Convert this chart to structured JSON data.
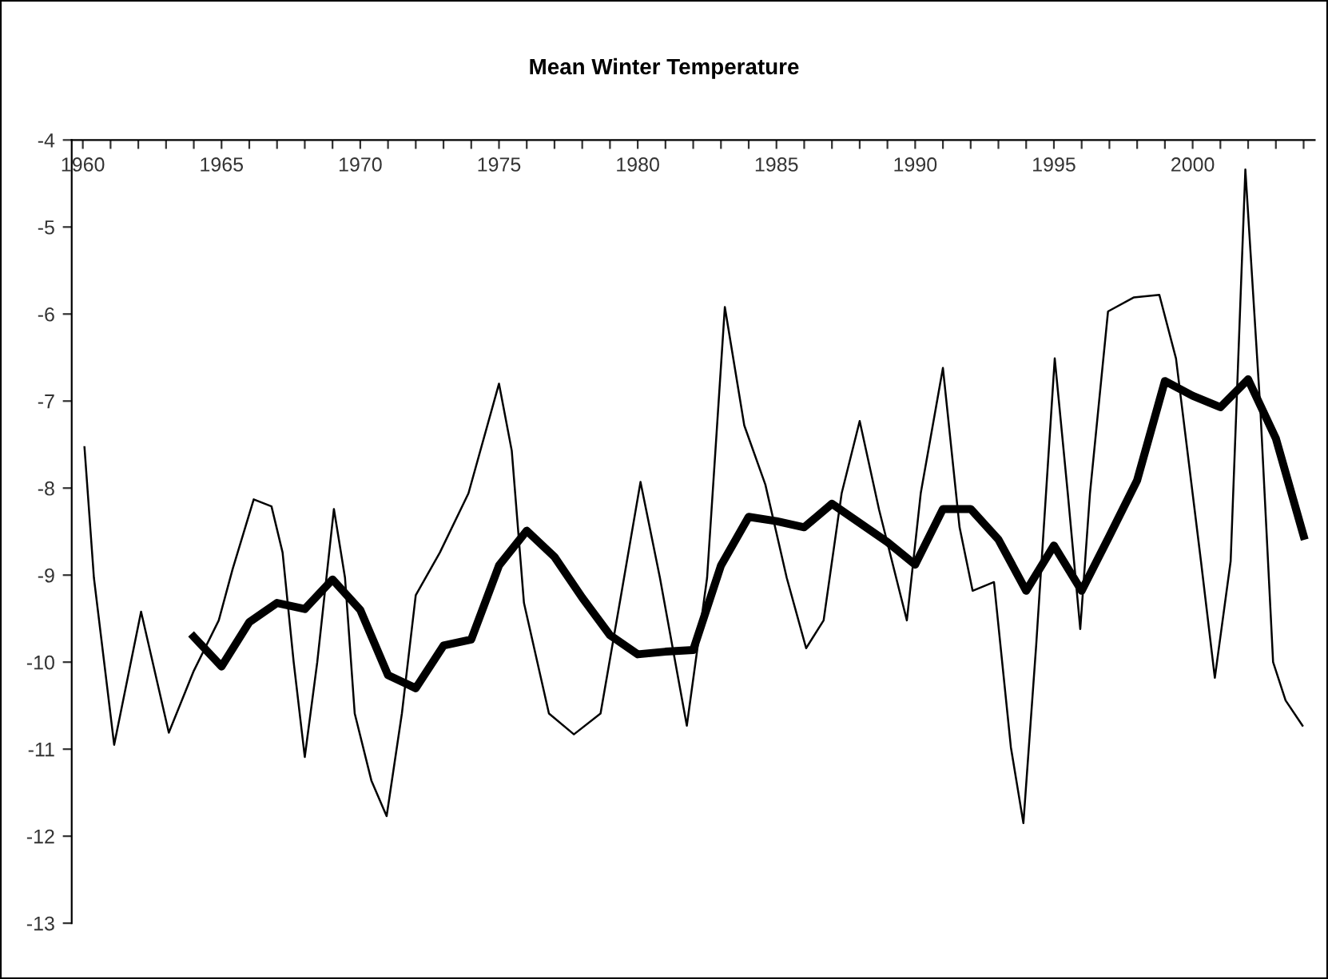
{
  "chart_data": {
    "type": "line",
    "title": "Mean Winter Temperature",
    "xlim": [
      1959.6,
      2004.4
    ],
    "xticks": [
      1960,
      {
        "value": 1961,
        "label": null
      },
      {
        "value": 1962,
        "label": null
      },
      {
        "value": 1963,
        "label": null
      },
      {
        "value": 1964,
        "label": null
      },
      1965,
      {
        "value": 1966,
        "label": null
      },
      {
        "value": 1967,
        "label": null
      },
      {
        "value": 1968,
        "label": null
      },
      {
        "value": 1969,
        "label": null
      },
      1970,
      {
        "value": 1971,
        "label": null
      },
      {
        "value": 1972,
        "label": null
      },
      {
        "value": 1973,
        "label": null
      },
      {
        "value": 1974,
        "label": null
      },
      1975,
      {
        "value": 1976,
        "label": null
      },
      {
        "value": 1977,
        "label": null
      },
      {
        "value": 1978,
        "label": null
      },
      {
        "value": 1979,
        "label": null
      },
      1980,
      {
        "value": 1981,
        "label": null
      },
      {
        "value": 1982,
        "label": null
      },
      {
        "value": 1983,
        "label": null
      },
      {
        "value": 1984,
        "label": null
      },
      1985,
      {
        "value": 1986,
        "label": null
      },
      {
        "value": 1987,
        "label": null
      },
      {
        "value": 1988,
        "label": null
      },
      {
        "value": 1989,
        "label": null
      },
      1990,
      {
        "value": 1991,
        "label": null
      },
      {
        "value": 1992,
        "label": null
      },
      {
        "value": 1993,
        "label": null
      },
      {
        "value": 1994,
        "label": null
      },
      1995,
      {
        "value": 1996,
        "label": null
      },
      {
        "value": 1997,
        "label": null
      },
      {
        "value": 1998,
        "label": null
      },
      {
        "value": 1999,
        "label": null
      },
      2000,
      {
        "value": 2001,
        "label": null
      },
      {
        "value": 2002,
        "label": null
      },
      {
        "value": 2003,
        "label": null
      },
      {
        "value": 2004,
        "label": null
      }
    ],
    "ylim": [
      -13,
      -4
    ],
    "yticks": [
      -13,
      -12,
      -11,
      -10,
      -9,
      -8,
      -7,
      -6,
      -5,
      -4
    ],
    "grid": false,
    "legend": false,
    "marker": "none",
    "line_style": "solid",
    "series": [
      {
        "color": "#000000",
        "x": [
          1960.06,
          1960.4,
          1961.13,
          1962.1,
          1963.1,
          1964.0,
          1964.9,
          1965.4,
          1966.16,
          1966.8,
          1967.2,
          1967.6,
          1968.0,
          1968.45,
          1969.05,
          1969.45,
          1969.8,
          1970.4,
          1970.95,
          1971.5,
          1972.0,
          1972.87,
          1973.9,
          1975.0,
          1975.46,
          1975.9,
          1976.8,
          1977.7,
          1978.66,
          1979.4,
          1980.1,
          1980.8,
          1981.77,
          1982.5,
          1983.14,
          1983.84,
          1984.6,
          1985.37,
          1986.07,
          1986.7,
          1987.35,
          1988.0,
          1988.7,
          1989.7,
          1990.2,
          1991.0,
          1991.6,
          1992.07,
          1992.84,
          1993.45,
          1993.9,
          1994.36,
          1995.03,
          1995.5,
          1995.95,
          1996.3,
          1996.95,
          1997.87,
          1998.8,
          1999.4,
          2000.3,
          2000.8,
          2001.37,
          2001.9,
          2002.44,
          2002.9,
          2003.35,
          2003.96
        ],
        "values": [
          -7.53,
          -9.03,
          -10.95,
          -9.42,
          -10.81,
          -10.1,
          -9.52,
          -8.93,
          -8.13,
          -8.21,
          -8.74,
          -10.0,
          -11.09,
          -10.0,
          -8.24,
          -9.03,
          -10.59,
          -11.36,
          -11.77,
          -10.59,
          -9.23,
          -8.74,
          -8.06,
          -6.8,
          -7.57,
          -9.32,
          -10.59,
          -10.83,
          -10.59,
          -9.23,
          -7.93,
          -9.03,
          -10.73,
          -9.03,
          -5.92,
          -7.28,
          -7.96,
          -9.03,
          -9.84,
          -9.52,
          -8.06,
          -7.23,
          -8.25,
          -9.52,
          -8.06,
          -6.62,
          -8.45,
          -9.18,
          -9.08,
          -10.98,
          -11.85,
          -9.81,
          -6.51,
          -8.06,
          -9.62,
          -8.06,
          -5.97,
          -5.81,
          -5.78,
          -6.51,
          -8.84,
          -10.18,
          -8.84,
          -4.34,
          -7.09,
          -10.0,
          -10.44,
          -10.73
        ]
      },
      {
        "color": "#000000",
        "x": [
          1964,
          1965,
          1966,
          1967,
          1968,
          1969,
          1970,
          1971,
          1972,
          1973,
          1974,
          1975,
          1976,
          1977,
          1978,
          1979,
          1980,
          1981,
          1982,
          1983,
          1984,
          1985,
          1986,
          1987,
          1988,
          1989,
          1990,
          1991,
          1992,
          1993,
          1994,
          1995,
          1996,
          1997,
          1998,
          1999,
          2000,
          2001,
          2002,
          2003,
          2004
        ],
        "values": [
          -9.71,
          -10.05,
          -9.54,
          -9.32,
          -9.39,
          -9.05,
          -9.4,
          -10.15,
          -10.3,
          -9.81,
          -9.74,
          -8.89,
          -8.49,
          -8.79,
          -9.26,
          -9.69,
          -9.91,
          -9.88,
          -9.86,
          -8.89,
          -8.33,
          -8.38,
          -8.45,
          -8.18,
          -8.4,
          -8.62,
          -8.88,
          -8.24,
          -8.24,
          -8.59,
          -9.18,
          -8.66,
          -9.18,
          -8.55,
          -7.91,
          -6.77,
          -6.94,
          -7.07,
          -6.75,
          -7.43,
          -8.55
        ]
      }
    ]
  }
}
